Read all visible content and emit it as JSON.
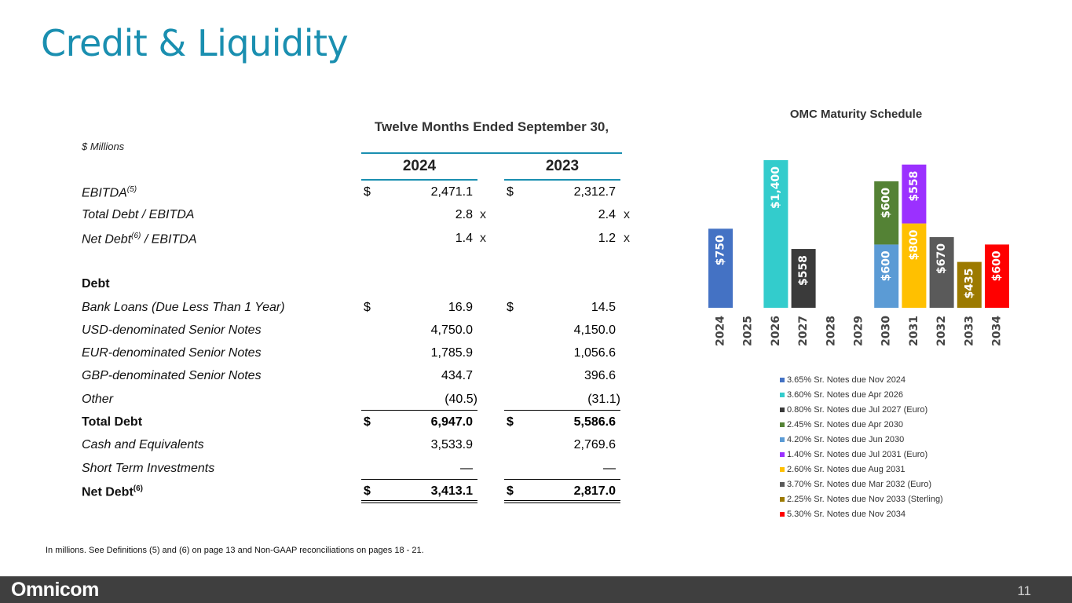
{
  "title": "Credit & Liquidity",
  "units": "$ Millions",
  "period": "Twelve Months Ended September 30,",
  "years": [
    "2024",
    "2023"
  ],
  "rows": [
    {
      "label": "EBITDA",
      "sup": "(5)",
      "cur1": "$",
      "v1": "2,471.1",
      "x1": "",
      "cur2": "$",
      "v2": "2,312.7",
      "x2": ""
    },
    {
      "label": "Total Debt / EBITDA",
      "sup": "",
      "cur1": "",
      "v1": "2.8",
      "x1": "x",
      "cur2": "",
      "v2": "2.4",
      "x2": "x"
    },
    {
      "label": "Net Debt",
      "sup": "(6)",
      "label_after": " / EBITDA",
      "cur1": "",
      "v1": "1.4",
      "x1": "x",
      "cur2": "",
      "v2": "1.2",
      "x2": "x"
    },
    {
      "label": "",
      "sup": "",
      "cur1": "",
      "v1": "",
      "x1": "",
      "cur2": "",
      "v2": "",
      "x2": ""
    },
    {
      "label": "Debt",
      "bold": true,
      "sup": "",
      "cur1": "",
      "v1": "",
      "x1": "",
      "cur2": "",
      "v2": "",
      "x2": ""
    },
    {
      "label": "Bank Loans (Due Less Than 1 Year)",
      "sup": "",
      "cur1": "$",
      "v1": "16.9",
      "x1": "",
      "cur2": "$",
      "v2": "14.5",
      "x2": ""
    },
    {
      "label": "USD-denominated Senior Notes",
      "sup": "",
      "cur1": "",
      "v1": "4,750.0",
      "x1": "",
      "cur2": "",
      "v2": "4,150.0",
      "x2": ""
    },
    {
      "label": "EUR-denominated Senior Notes",
      "sup": "",
      "cur1": "",
      "v1": "1,785.9",
      "x1": "",
      "cur2": "",
      "v2": "1,056.6",
      "x2": ""
    },
    {
      "label": "GBP-denominated Senior Notes",
      "sup": "",
      "cur1": "",
      "v1": "434.7",
      "x1": "",
      "cur2": "",
      "v2": "396.6",
      "x2": ""
    },
    {
      "label": "Other",
      "sup": "",
      "cur1": "",
      "v1": "(40.5)",
      "x1": "",
      "cur2": "",
      "v2": "(31.1)",
      "x2": ""
    },
    {
      "label": "Total Debt",
      "bold": true,
      "sup": "",
      "cur1": "$",
      "v1": "6,947.0",
      "x1": "",
      "cur2": "$",
      "v2": "5,586.6",
      "x2": ""
    },
    {
      "label": "Cash and Equivalents",
      "sup": "",
      "cur1": "",
      "v1": "3,533.9",
      "x1": "",
      "cur2": "",
      "v2": "2,769.6",
      "x2": ""
    },
    {
      "label": "Short Term Investments",
      "sup": "",
      "cur1": "",
      "v1": "—",
      "x1": "",
      "cur2": "",
      "v2": "—",
      "x2": ""
    },
    {
      "label": "Net Debt",
      "bold": true,
      "sup": "(6)",
      "cur1": "$",
      "v1": "3,413.1",
      "x1": "",
      "cur2": "$",
      "v2": "2,817.0",
      "x2": ""
    }
  ],
  "footnote": "In millions.  See Definitions (5) and (6) on page 13 and Non-GAAP reconciliations on pages 18 - 21.",
  "footer": {
    "logo": "Omnicom",
    "page": "11"
  },
  "chart_data": {
    "type": "bar",
    "title": "OMC Maturity Schedule",
    "stacked": true,
    "categories": [
      "2024",
      "2025",
      "2026",
      "2027",
      "2028",
      "2029",
      "2030",
      "2031",
      "2032",
      "2033",
      "2034"
    ],
    "series": [
      {
        "name": "3.65% Sr. Notes due Nov 2024",
        "color": "#4472c4",
        "values": [
          750,
          0,
          0,
          0,
          0,
          0,
          0,
          0,
          0,
          0,
          0
        ],
        "labels": [
          "$750"
        ]
      },
      {
        "name": "3.60% Sr. Notes due Apr 2026",
        "color": "#33cccc",
        "values": [
          0,
          0,
          1400,
          0,
          0,
          0,
          0,
          0,
          0,
          0,
          0
        ],
        "labels": [
          "$1,400"
        ]
      },
      {
        "name": "0.80% Sr. Notes due Jul 2027 (Euro)",
        "color": "#3a3a3a",
        "values": [
          0,
          0,
          0,
          558,
          0,
          0,
          0,
          0,
          0,
          0,
          0
        ],
        "labels": [
          "$558"
        ]
      },
      {
        "name": "2.45% Sr. Notes due Apr 2030",
        "color": "#548235",
        "values": [
          0,
          0,
          0,
          0,
          0,
          0,
          600,
          0,
          0,
          0,
          0
        ],
        "labels": [
          "$600"
        ]
      },
      {
        "name": "4.20% Sr. Notes due Jun 2030",
        "color": "#5b9bd5",
        "values": [
          0,
          0,
          0,
          0,
          0,
          0,
          600,
          0,
          0,
          0,
          0
        ],
        "labels": [
          "$600"
        ]
      },
      {
        "name": "1.40% Sr. Notes due Jul 2031 (Euro)",
        "color": "#9b30ff",
        "values": [
          0,
          0,
          0,
          0,
          0,
          0,
          0,
          558,
          0,
          0,
          0
        ],
        "labels": [
          "$558"
        ]
      },
      {
        "name": "2.60% Sr. Notes due Aug 2031",
        "color": "#ffc000",
        "values": [
          0,
          0,
          0,
          0,
          0,
          0,
          0,
          800,
          0,
          0,
          0
        ],
        "labels": [
          "$800"
        ]
      },
      {
        "name": "3.70% Sr. Notes due Mar 2032 (Euro)",
        "color": "#5a5a5a",
        "values": [
          0,
          0,
          0,
          0,
          0,
          0,
          0,
          0,
          670,
          0,
          0
        ],
        "labels": [
          "$670"
        ]
      },
      {
        "name": "2.25% Sr. Notes due Nov 2033 (Sterling)",
        "color": "#9c7a00",
        "values": [
          0,
          0,
          0,
          0,
          0,
          0,
          0,
          0,
          0,
          435,
          0
        ],
        "labels": [
          "$435"
        ]
      },
      {
        "name": "5.30% Sr. Notes due Nov 2034",
        "color": "#ff0000",
        "values": [
          0,
          0,
          0,
          0,
          0,
          0,
          0,
          0,
          0,
          0,
          600
        ],
        "labels": [
          "$600"
        ]
      }
    ],
    "stack_order": [
      {
        "cat": "2024",
        "stack": [
          {
            "s": 0,
            "v": 750,
            "label": "$750"
          }
        ]
      },
      {
        "cat": "2026",
        "stack": [
          {
            "s": 1,
            "v": 1400,
            "label": "$1,400"
          }
        ]
      },
      {
        "cat": "2027",
        "stack": [
          {
            "s": 2,
            "v": 558,
            "label": "$558"
          }
        ]
      },
      {
        "cat": "2030",
        "stack": [
          {
            "s": 4,
            "v": 600,
            "label": "$600"
          },
          {
            "s": 3,
            "v": 600,
            "label": "$600"
          }
        ]
      },
      {
        "cat": "2031",
        "stack": [
          {
            "s": 6,
            "v": 800,
            "label": "$800"
          },
          {
            "s": 5,
            "v": 558,
            "label": "$558"
          }
        ]
      },
      {
        "cat": "2032",
        "stack": [
          {
            "s": 7,
            "v": 670,
            "label": "$670"
          }
        ]
      },
      {
        "cat": "2033",
        "stack": [
          {
            "s": 8,
            "v": 435,
            "label": "$435"
          }
        ]
      },
      {
        "cat": "2034",
        "stack": [
          {
            "s": 9,
            "v": 600,
            "label": "$600"
          }
        ]
      }
    ],
    "ylim": [
      0,
      1400
    ],
    "legend_position": "bottom",
    "grid": false
  }
}
